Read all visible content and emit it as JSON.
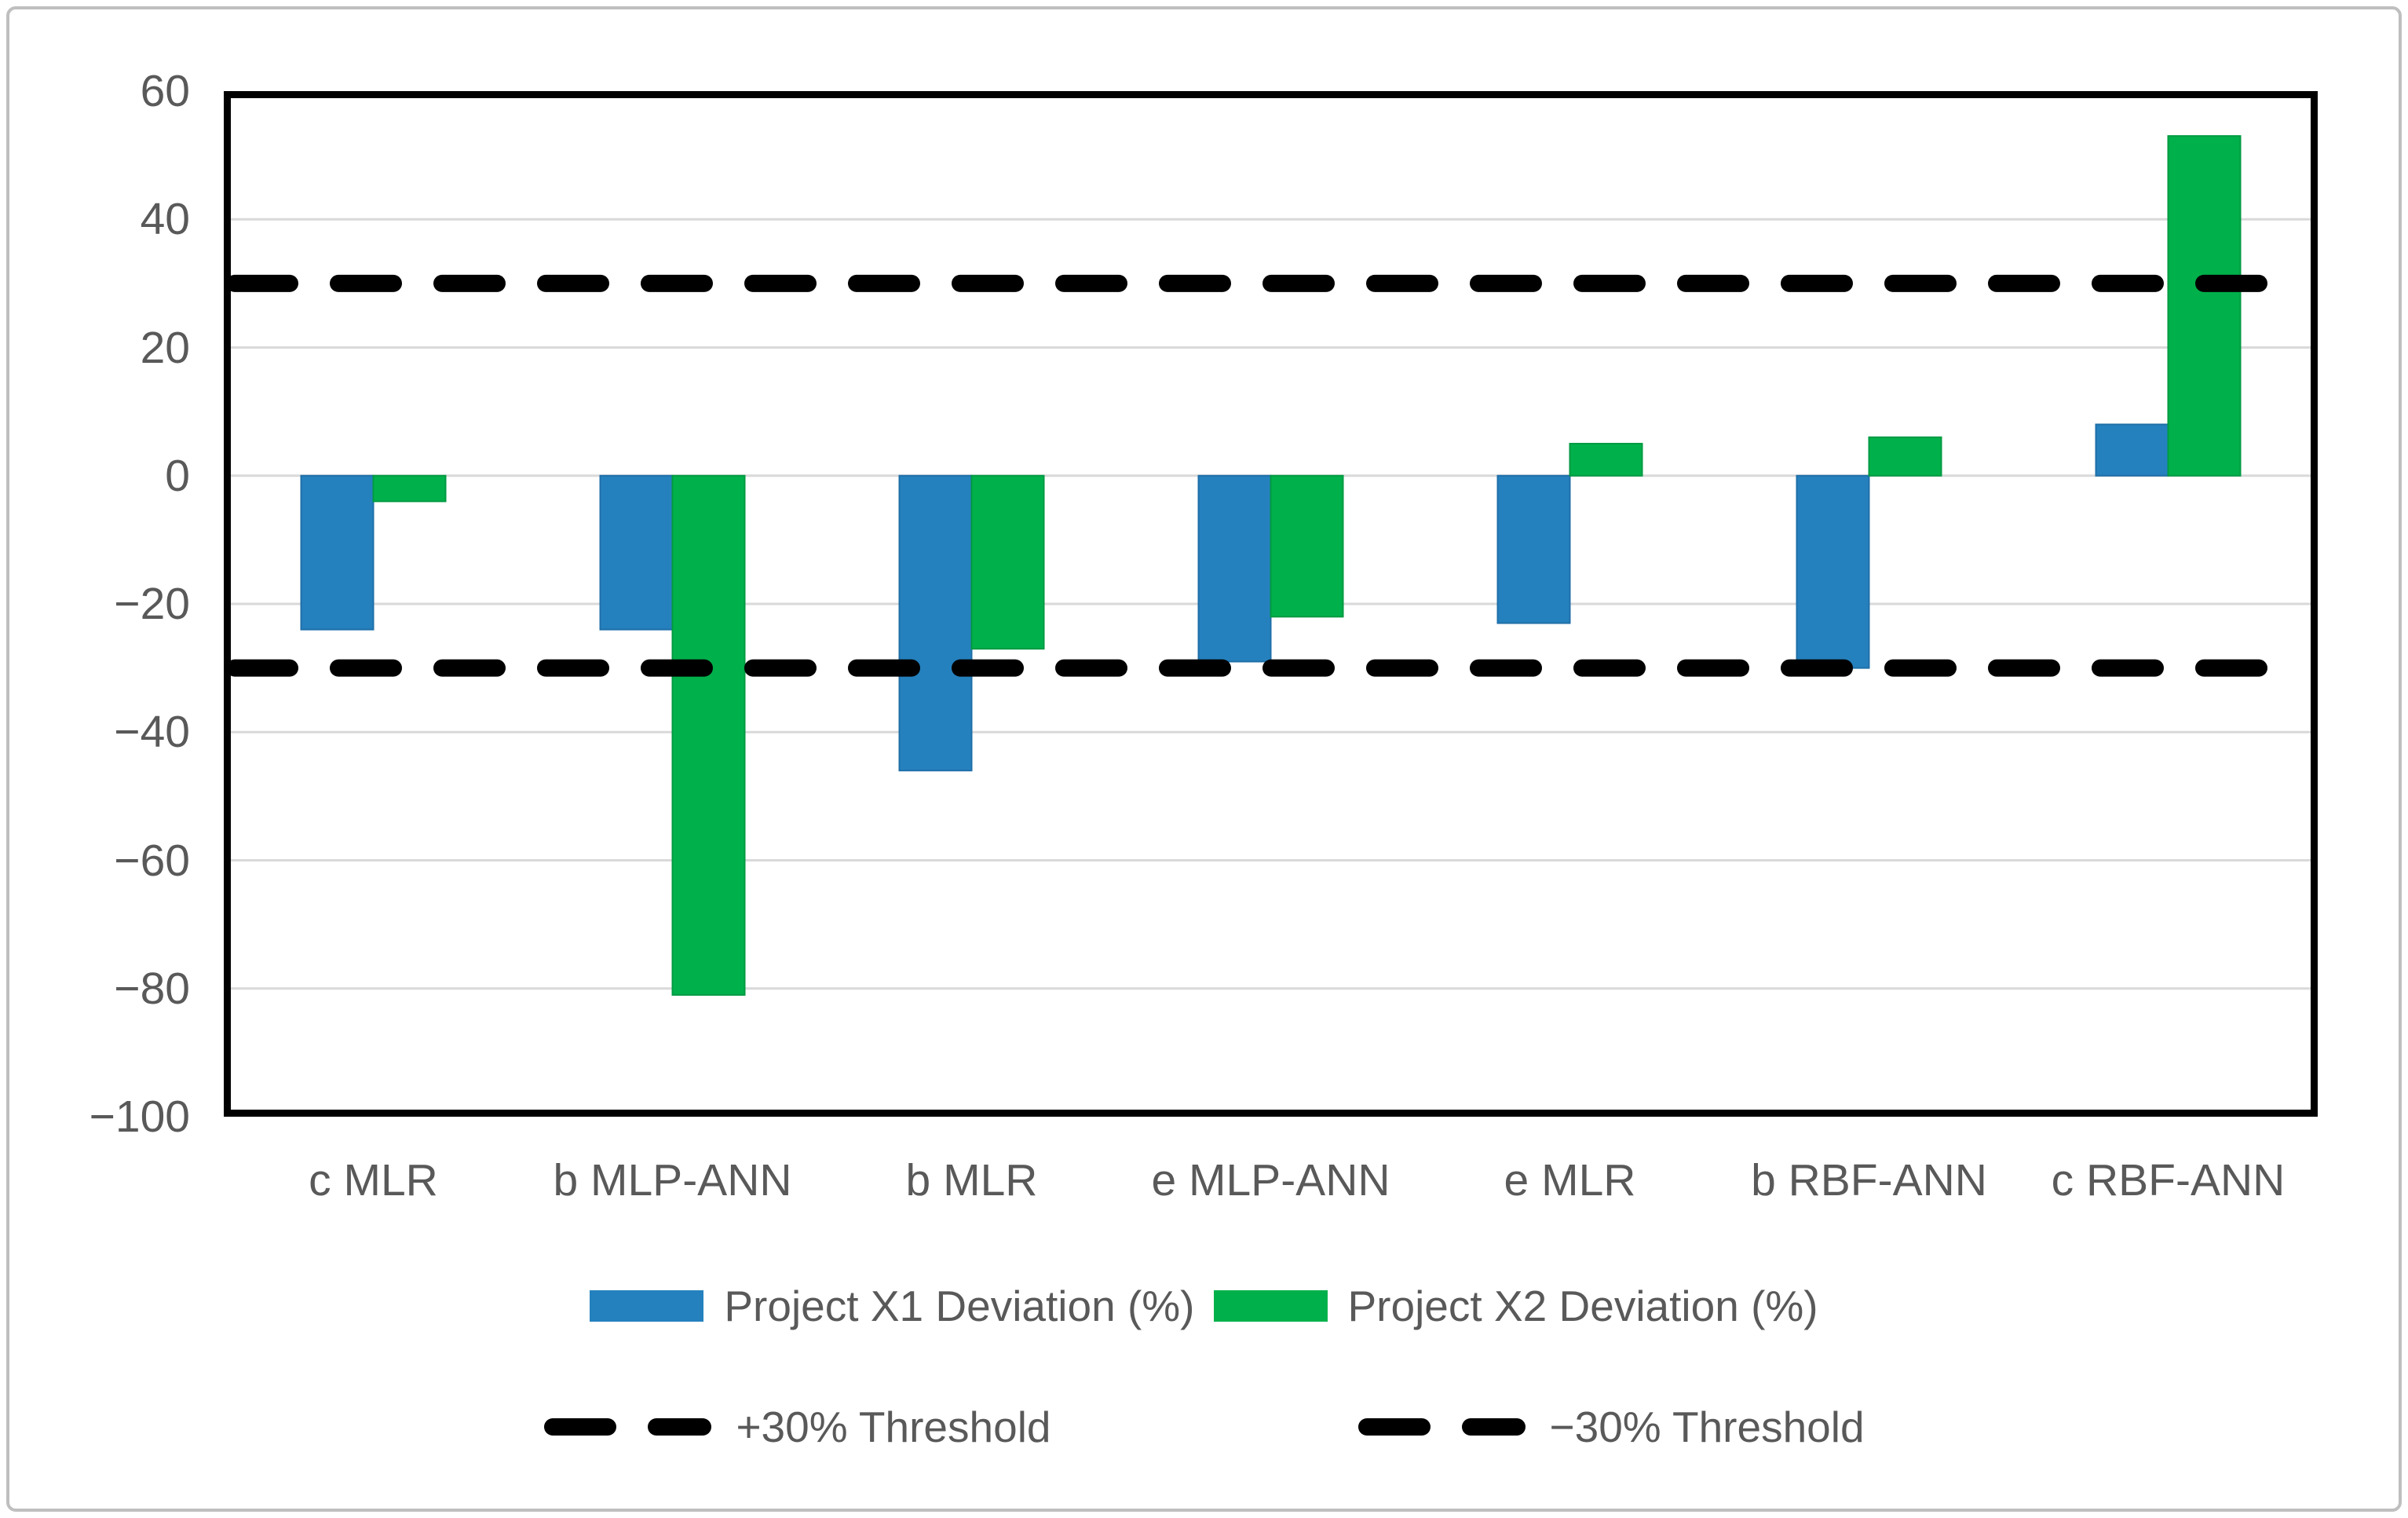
{
  "figure": {
    "background": "#FFFFFF",
    "border_color": "#BFBFBF"
  },
  "chart_data": {
    "type": "bar",
    "title": "",
    "xlabel": "",
    "ylabel": "",
    "categories": [
      "c MLR",
      "b MLP-ANN",
      "b MLR",
      "e MLP-ANN",
      "e MLR",
      "b RBF-ANN",
      "c RBF-ANN"
    ],
    "series": [
      {
        "name": "Project X1 Deviation (%)",
        "color": "#2581BE",
        "edge_color": "#1F6FA8",
        "values": [
          -24,
          -24,
          -46,
          -29,
          -23,
          -30,
          8
        ]
      },
      {
        "name": "Project X2 Deviation (%)",
        "color": "#00B14B",
        "edge_color": "#009A42",
        "values": [
          -4,
          -81,
          -27,
          -22,
          5,
          6,
          53
        ]
      }
    ],
    "thresholds": [
      {
        "label": "+30% Threshold",
        "value": 30,
        "color": "#000000",
        "style": "dashed"
      },
      {
        "label": "−30% Threshold",
        "value": -30,
        "color": "#000000",
        "style": "dashed"
      }
    ],
    "ylim": [
      -100,
      60
    ],
    "ytick_step": 20,
    "ytick_labels": [
      "60",
      "40",
      "20",
      "0",
      "−20",
      "−40",
      "−60",
      "−80",
      "−100"
    ],
    "grid": true,
    "grid_color": "#D9D9D9",
    "plot_border_color": "#000000",
    "text_color": "#595959",
    "legend_position": "bottom"
  }
}
